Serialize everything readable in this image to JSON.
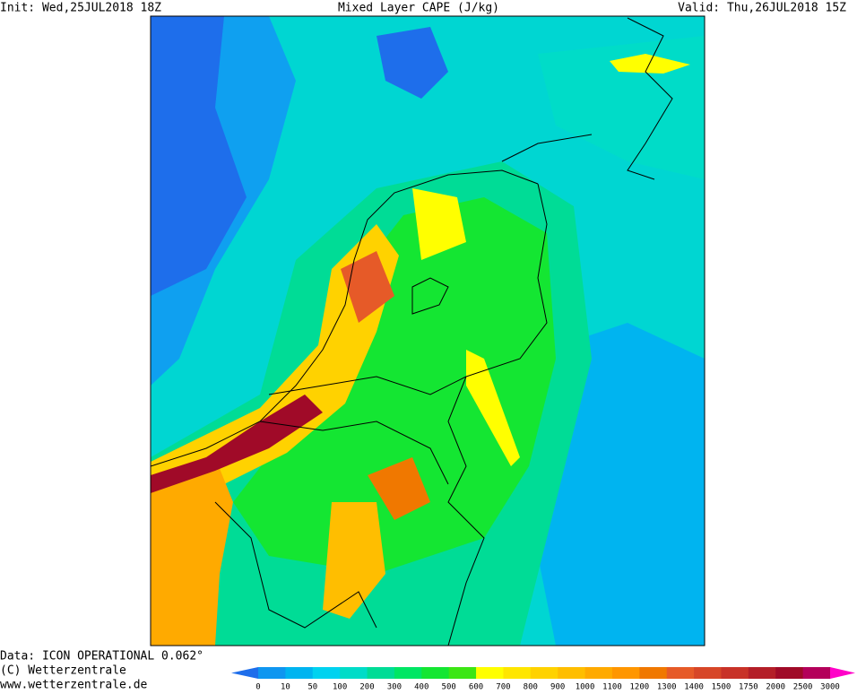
{
  "header": {
    "init": "Init: Wed,25JUL2018 18Z",
    "title": "Mixed Layer CAPE (J/kg)",
    "valid": "Valid: Thu,26JUL2018 15Z"
  },
  "footer": [
    "Data: ICON OPERATIONAL 0.062°",
    "(C) Wetterzentrale",
    "www.wetterzentrale.de"
  ],
  "colorbar": {
    "labels": [
      0,
      10,
      50,
      100,
      200,
      300,
      400,
      500,
      600,
      700,
      800,
      900,
      1000,
      1100,
      1200,
      1300,
      1400,
      1500,
      1750,
      2000,
      2500,
      3000
    ],
    "colors": [
      "#1e6eeb",
      "#0f96f0",
      "#00b4f0",
      "#00d2f0",
      "#00dcc8",
      "#00dc96",
      "#00e664",
      "#14e632",
      "#3ce614",
      "#ffff00",
      "#ffe600",
      "#ffd200",
      "#ffbe00",
      "#ffaa00",
      "#ff9600",
      "#f07800",
      "#e65a28",
      "#d74628",
      "#c83228",
      "#b41e28",
      "#a00a28",
      "#b4005a",
      "#ff00c8"
    ]
  }
}
